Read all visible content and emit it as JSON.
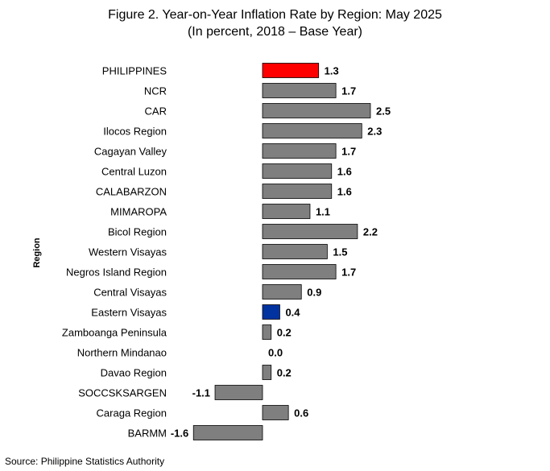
{
  "figure": {
    "title": "Figure 2. Year-on-Year Inflation Rate by Region: May 2025",
    "subtitle": "(In percent, 2018 – Base Year)",
    "source": "Source: Philippine Statistics Authority"
  },
  "colors": {
    "default_bar": "#7f7f7f",
    "highlight_national": "#ff0000",
    "highlight_region": "#0033a0",
    "bar_outline": "#000000"
  },
  "chart_data": {
    "type": "bar",
    "orientation": "horizontal",
    "title": "Figure 2. Year-on-Year Inflation Rate by Region: May 2025",
    "subtitle": "(In percent, 2018 – Base Year)",
    "ylabel": "Region",
    "xlabel": "",
    "xlim": [
      -1.6,
      2.5
    ],
    "grid": false,
    "legend": "none",
    "categories": [
      "PHILIPPINES",
      "NCR",
      "CAR",
      "Ilocos Region",
      "Cagayan Valley",
      "Central Luzon",
      "CALABARZON",
      "MIMAROPA",
      "Bicol Region",
      "Western Visayas",
      "Negros Island Region",
      "Central Visayas",
      "Eastern Visayas",
      "Zamboanga Peninsula",
      "Northern Mindanao",
      "Davao Region",
      "SOCCSKSARGEN",
      "Caraga Region",
      "BARMM"
    ],
    "values": [
      1.3,
      1.7,
      2.5,
      2.3,
      1.7,
      1.6,
      1.6,
      1.1,
      2.2,
      1.5,
      1.7,
      0.9,
      0.4,
      0.2,
      0.0,
      0.2,
      -1.1,
      0.6,
      -1.6
    ],
    "data_labels": [
      "1.3",
      "1.7",
      "2.5",
      "2.3",
      "1.7",
      "1.6",
      "1.6",
      "1.1",
      "2.2",
      "1.5",
      "1.7",
      "0.9",
      "0.4",
      "0.2",
      "0.0",
      "0.2",
      "-1.1",
      "0.6",
      "-1.6"
    ],
    "highlight": {
      "PHILIPPINES": "#ff0000",
      "Eastern Visayas": "#0033a0"
    }
  }
}
